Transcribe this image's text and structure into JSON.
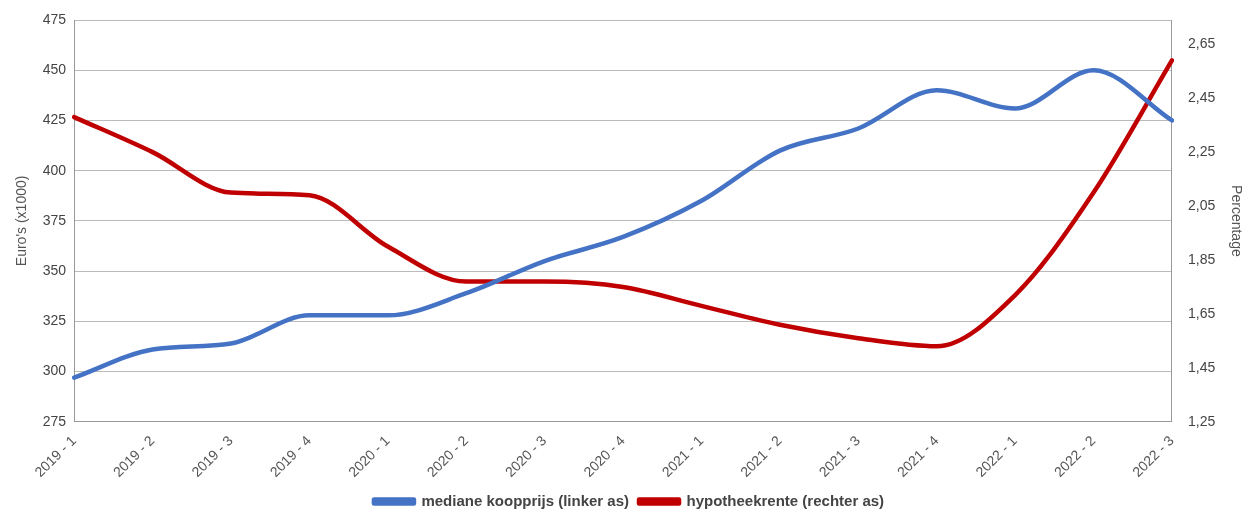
{
  "chart_data": {
    "type": "line",
    "ylabel": "Euro's (x1000)",
    "y2label": "Percentage",
    "categories": [
      "2019 - 1",
      "2019 - 2",
      "2019 - 3",
      "2019 - 4",
      "2020 - 1",
      "2020 - 2",
      "2020 - 3",
      "2020 - 4",
      "2021 - 1",
      "2021 - 2",
      "2021 - 3",
      "2021 - 4",
      "2022 - 1",
      "2022 - 2",
      "2022 - 3"
    ],
    "series": [
      {
        "name": "mediane koopprijs (linker as)",
        "color": "#4472c4",
        "values": [
          297,
          311,
          314,
          328,
          328,
          339,
          355,
          367,
          385,
          410,
          421,
          440,
          431,
          450,
          425
        ]
      },
      {
        "name": "hypotheekrente (rechter as)",
        "color": "#c00000",
        "axis": "y2",
        "values": [
          2.38,
          2.25,
          2.1,
          2.09,
          1.9,
          1.77,
          1.77,
          1.75,
          1.68,
          1.61,
          1.56,
          1.53,
          1.72,
          2.1,
          2.59
        ]
      }
    ],
    "ylim": [
      275,
      475
    ],
    "yticks": [
      275,
      300,
      325,
      350,
      375,
      400,
      425,
      450,
      475
    ],
    "y2lim": [
      1.25,
      2.74
    ],
    "y2ticks": [
      {
        "value": 1.25,
        "label": "1,25"
      },
      {
        "value": 1.45,
        "label": "1,45"
      },
      {
        "value": 1.65,
        "label": "1,65"
      },
      {
        "value": 1.85,
        "label": "1,85"
      },
      {
        "value": 2.05,
        "label": "2,05"
      },
      {
        "value": 2.25,
        "label": "2,25"
      },
      {
        "value": 2.45,
        "label": "2,45"
      },
      {
        "value": 2.65,
        "label": "2,65"
      }
    ],
    "grid": "y",
    "legend": "bottom",
    "marker": "none",
    "line_style": "solid"
  }
}
